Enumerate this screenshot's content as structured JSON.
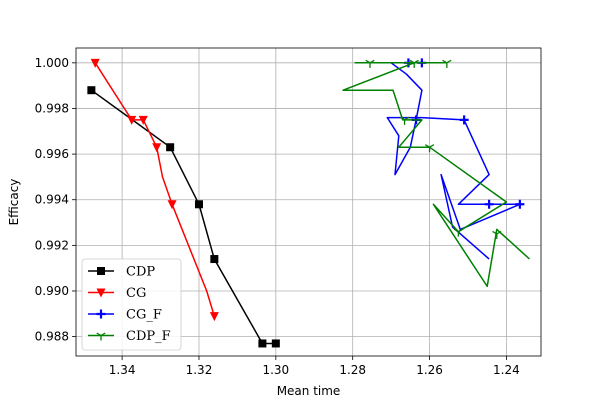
{
  "chart_data": {
    "type": "line",
    "xlabel": "Mean time",
    "ylabel": "Efficacy",
    "xlim": [
      1.352,
      1.231
    ],
    "ylim": [
      0.98715,
      1.00065
    ],
    "x_inverted": true,
    "grid": true,
    "legend_position": "lower-left",
    "xticks": [
      1.34,
      1.32,
      1.3,
      1.28,
      1.26,
      1.24
    ],
    "xtick_labels": [
      "1.34",
      "1.32",
      "1.30",
      "1.28",
      "1.26",
      "1.24"
    ],
    "yticks": [
      0.988,
      0.99,
      0.992,
      0.994,
      0.996,
      0.998,
      1.0
    ],
    "ytick_labels": [
      "0.988",
      "0.990",
      "0.992",
      "0.994",
      "0.996",
      "0.998",
      "1.000"
    ],
    "series": [
      {
        "name": "CDP",
        "color": "#000000",
        "marker": "square",
        "points": [
          [
            1.348,
            0.9988
          ],
          [
            1.3275,
            0.9963
          ],
          [
            1.32,
            0.9938
          ],
          [
            1.316,
            0.9914
          ],
          [
            1.3035,
            0.9877
          ],
          [
            1.3,
            0.9877
          ]
        ],
        "marker_points": [
          [
            1.348,
            0.9988
          ],
          [
            1.3275,
            0.9963
          ],
          [
            1.32,
            0.9938
          ],
          [
            1.316,
            0.9914
          ],
          [
            1.3035,
            0.9877
          ],
          [
            1.3,
            0.9877
          ]
        ]
      },
      {
        "name": "CG",
        "color": "#ff0000",
        "marker": "triangle-down",
        "points": [
          [
            1.347,
            1.0
          ],
          [
            1.3375,
            0.9975
          ],
          [
            1.3345,
            0.9975
          ],
          [
            1.331,
            0.9963
          ],
          [
            1.3295,
            0.995
          ],
          [
            1.327,
            0.9938
          ],
          [
            1.318,
            0.99
          ],
          [
            1.316,
            0.9889
          ]
        ],
        "marker_points": [
          [
            1.347,
            1.0
          ],
          [
            1.3375,
            0.9975
          ],
          [
            1.3345,
            0.9975
          ],
          [
            1.331,
            0.9963
          ],
          [
            1.327,
            0.9938
          ],
          [
            1.316,
            0.9889
          ]
        ]
      },
      {
        "name": "CG_F",
        "color": "#0000ff",
        "marker": "plus",
        "points": [
          [
            1.2655,
            1.0
          ],
          [
            1.262,
            1.0
          ],
          [
            1.27,
            1.0
          ],
          [
            1.266,
            0.9995
          ],
          [
            1.262,
            0.9988
          ],
          [
            1.2635,
            0.9975
          ],
          [
            1.265,
            0.9963
          ],
          [
            1.269,
            0.9951
          ],
          [
            1.268,
            0.9968
          ],
          [
            1.271,
            0.9976
          ],
          [
            1.262,
            0.9976
          ],
          [
            1.251,
            0.9975
          ],
          [
            1.2445,
            0.9951
          ],
          [
            1.2525,
            0.9938
          ],
          [
            1.2445,
            0.9938
          ],
          [
            1.2365,
            0.9938
          ],
          [
            1.252,
            0.9927
          ],
          [
            1.257,
            0.9951
          ],
          [
            1.254,
            0.9928
          ],
          [
            1.2445,
            0.9914
          ]
        ],
        "marker_points": [
          [
            1.2655,
            1.0
          ],
          [
            1.262,
            1.0
          ],
          [
            1.2635,
            0.9975
          ],
          [
            1.251,
            0.9975
          ],
          [
            1.2445,
            0.9938
          ],
          [
            1.2365,
            0.9938
          ]
        ]
      },
      {
        "name": "CDP_F",
        "color": "#008000",
        "marker": "tri-down",
        "points": [
          [
            1.2795,
            1.0
          ],
          [
            1.2755,
            1.0
          ],
          [
            1.2555,
            1.0
          ],
          [
            1.264,
            1.0
          ],
          [
            1.2825,
            0.9988
          ],
          [
            1.2695,
            0.9988
          ],
          [
            1.267,
            0.9975
          ],
          [
            1.262,
            0.9975
          ],
          [
            1.268,
            0.9963
          ],
          [
            1.26,
            0.9963
          ],
          [
            1.24,
            0.9939
          ],
          [
            1.2525,
            0.9926
          ],
          [
            1.259,
            0.9938
          ],
          [
            1.245,
            0.9902
          ],
          [
            1.2425,
            0.9927
          ],
          [
            1.234,
            0.9914
          ]
        ],
        "marker_points": [
          [
            1.2755,
            1.0
          ],
          [
            1.2555,
            1.0
          ],
          [
            1.264,
            1.0
          ],
          [
            1.2665,
            0.9975
          ],
          [
            1.26,
            0.9963
          ],
          [
            1.2525,
            0.9926
          ],
          [
            1.2425,
            0.9925
          ]
        ]
      }
    ]
  }
}
